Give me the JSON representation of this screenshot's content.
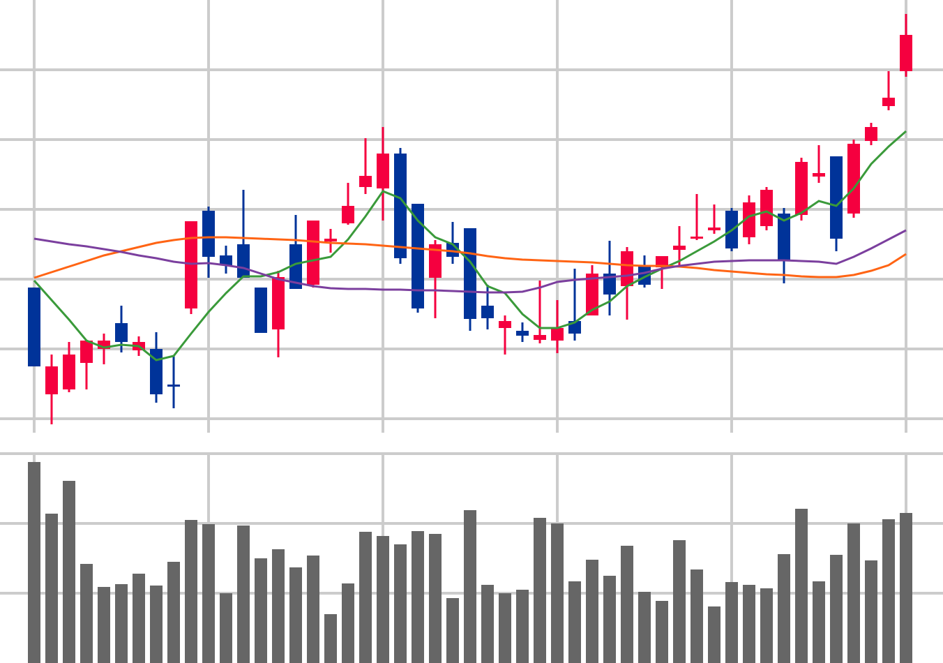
{
  "chart_data": [
    {
      "type": "candlestick",
      "x": [
        0,
        1,
        2,
        3,
        4,
        5,
        6,
        7,
        8,
        9,
        10,
        11,
        12,
        13,
        14,
        15,
        16,
        17,
        18,
        19,
        20,
        21,
        22,
        23,
        24,
        25,
        26,
        27,
        28,
        29,
        30,
        31,
        32,
        33,
        34,
        35,
        36,
        37,
        38,
        39,
        40,
        41,
        42,
        43,
        44,
        45,
        46,
        47,
        48,
        49,
        50
      ],
      "open": [
        1.88,
        0.35,
        0.42,
        0.8,
        1.0,
        1.37,
        0.98,
        1.0,
        0.49,
        1.58,
        2.98,
        2.34,
        2.5,
        1.88,
        1.28,
        2.5,
        1.92,
        2.54,
        2.8,
        3.32,
        3.3,
        3.8,
        3.08,
        2.02,
        2.52,
        2.73,
        1.62,
        1.3,
        1.26,
        1.13,
        1.12,
        1.4,
        1.48,
        2.08,
        1.9,
        2.18,
        2.17,
        2.42,
        2.58,
        2.7,
        2.98,
        2.6,
        2.76,
        2.94,
        2.92,
        3.47,
        3.76,
        2.94,
        3.98,
        4.48,
        4.98
      ],
      "high": [
        1.88,
        0.92,
        1.1,
        1.12,
        1.22,
        1.62,
        1.18,
        1.24,
        0.9,
        2.83,
        3.04,
        2.48,
        3.28,
        1.88,
        2.12,
        2.92,
        2.84,
        2.72,
        3.38,
        4.02,
        4.18,
        3.88,
        3.08,
        2.56,
        2.82,
        2.73,
        1.92,
        1.48,
        1.38,
        1.98,
        1.7,
        2.15,
        2.2,
        2.55,
        2.46,
        2.34,
        2.33,
        2.76,
        3.22,
        3.07,
        3.02,
        3.2,
        3.32,
        3.02,
        3.74,
        3.92,
        3.76,
        4.0,
        4.24,
        4.98,
        5.8
      ],
      "low": [
        0.75,
        -0.08,
        0.38,
        0.42,
        0.78,
        0.95,
        0.9,
        0.23,
        0.15,
        1.5,
        2.02,
        2.08,
        2.02,
        1.23,
        0.88,
        1.86,
        1.88,
        2.38,
        2.78,
        3.22,
        2.84,
        2.22,
        1.52,
        1.44,
        2.22,
        1.26,
        1.28,
        0.92,
        1.1,
        1.08,
        0.94,
        1.12,
        1.48,
        1.48,
        1.42,
        1.88,
        1.86,
        2.18,
        2.56,
        2.65,
        2.4,
        2.5,
        2.7,
        1.94,
        2.84,
        3.38,
        2.4,
        2.88,
        3.92,
        4.42,
        4.9
      ],
      "close": [
        0.75,
        0.75,
        0.92,
        1.12,
        1.12,
        1.1,
        1.1,
        0.35,
        0.46,
        2.83,
        2.32,
        2.2,
        2.02,
        1.23,
        2.03,
        1.86,
        2.84,
        2.58,
        3.05,
        3.48,
        3.8,
        2.3,
        1.58,
        2.5,
        2.32,
        1.43,
        1.44,
        1.4,
        1.19,
        1.2,
        1.3,
        1.22,
        2.08,
        1.78,
        2.4,
        1.92,
        2.33,
        2.48,
        2.61,
        2.74,
        2.44,
        3.1,
        3.28,
        2.28,
        3.68,
        3.52,
        2.58,
        3.94,
        4.18,
        4.6,
        5.5
      ],
      "up_color": "#f5003f",
      "down_color": "#003399",
      "series": [
        {
          "color": "#3a9a3a",
          "values": [
            1.98,
            1.7,
            1.42,
            1.12,
            1.02,
            1.06,
            1.04,
            0.84,
            0.9,
            1.22,
            1.53,
            1.8,
            2.04,
            2.04,
            2.1,
            2.22,
            2.27,
            2.32,
            2.57,
            2.9,
            3.26,
            3.16,
            2.84,
            2.6,
            2.5,
            2.25,
            1.9,
            1.8,
            1.5,
            1.3,
            1.3,
            1.38,
            1.56,
            1.68,
            1.9,
            2.03,
            2.15,
            2.26,
            2.4,
            2.54,
            2.7,
            2.9,
            2.97,
            2.84,
            2.95,
            3.12,
            3.05,
            3.3,
            3.65,
            3.9,
            4.12
          ]
        },
        {
          "color": "#ff6414",
          "values": [
            2.02,
            2.1,
            2.18,
            2.26,
            2.34,
            2.4,
            2.46,
            2.52,
            2.56,
            2.59,
            2.6,
            2.6,
            2.59,
            2.58,
            2.57,
            2.56,
            2.54,
            2.52,
            2.51,
            2.5,
            2.48,
            2.46,
            2.44,
            2.42,
            2.4,
            2.37,
            2.33,
            2.3,
            2.28,
            2.27,
            2.26,
            2.25,
            2.24,
            2.22,
            2.2,
            2.19,
            2.19,
            2.18,
            2.16,
            2.13,
            2.11,
            2.09,
            2.07,
            2.06,
            2.04,
            2.03,
            2.03,
            2.06,
            2.12,
            2.2,
            2.36
          ]
        },
        {
          "color": "#7b3f9e",
          "values": [
            2.58,
            2.54,
            2.5,
            2.47,
            2.43,
            2.39,
            2.34,
            2.3,
            2.25,
            2.22,
            2.23,
            2.2,
            2.16,
            2.08,
            2.0,
            1.95,
            1.9,
            1.87,
            1.86,
            1.86,
            1.85,
            1.85,
            1.84,
            1.84,
            1.83,
            1.82,
            1.81,
            1.81,
            1.82,
            1.88,
            1.96,
            1.99,
            2.01,
            2.03,
            2.05,
            2.09,
            2.15,
            2.19,
            2.22,
            2.25,
            2.26,
            2.27,
            2.27,
            2.27,
            2.26,
            2.25,
            2.22,
            2.32,
            2.44,
            2.57,
            2.7
          ]
        }
      ],
      "xlim": [
        -1.96,
        52.12
      ],
      "xticks": [
        0,
        10,
        20,
        30,
        40,
        50
      ],
      "ylim": [
        -0.2,
        6.0
      ],
      "yticks": [
        0,
        1,
        2,
        3,
        4,
        5
      ],
      "grid": true
    },
    {
      "type": "bar",
      "x": [
        0,
        1,
        2,
        3,
        4,
        5,
        6,
        7,
        8,
        9,
        10,
        11,
        12,
        13,
        14,
        15,
        16,
        17,
        18,
        19,
        20,
        21,
        22,
        23,
        24,
        25,
        26,
        27,
        28,
        29,
        30,
        31,
        32,
        33,
        34,
        35,
        36,
        37,
        38,
        39,
        40,
        41,
        42,
        43,
        44,
        45,
        46,
        47,
        48,
        49,
        50
      ],
      "values": [
        2.88,
        2.14,
        2.61,
        1.42,
        1.09,
        1.13,
        1.28,
        1.11,
        1.45,
        2.05,
        1.99,
        1.0,
        1.97,
        1.5,
        1.63,
        1.37,
        1.54,
        0.7,
        1.14,
        1.88,
        1.82,
        1.7,
        1.89,
        1.85,
        0.93,
        2.19,
        1.12,
        1.0,
        1.05,
        2.08,
        2.0,
        1.17,
        1.48,
        1.25,
        1.68,
        1.02,
        0.89,
        1.76,
        1.34,
        0.81,
        1.16,
        1.12,
        1.07,
        1.56,
        2.21,
        1.17,
        1.55,
        2.0,
        1.47,
        2.06,
        2.15
      ],
      "color": "#666666",
      "xlim": [
        -1.96,
        52.12
      ],
      "xticks": [
        0,
        10,
        20,
        30,
        40,
        50
      ],
      "ylim": [
        0,
        3
      ],
      "yticks": [
        1,
        2,
        3
      ],
      "grid": true
    }
  ]
}
